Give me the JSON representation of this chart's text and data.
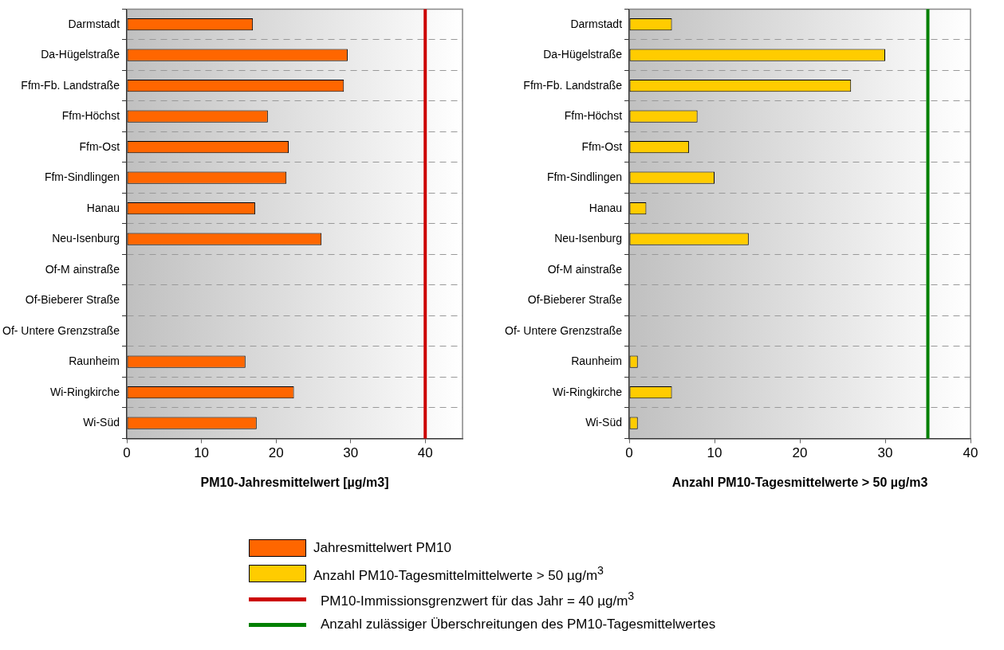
{
  "chart_data": [
    {
      "type": "bar",
      "orientation": "horizontal",
      "xlabel": "PM10-Jahresmittelwert [µg/m3]",
      "categories": [
        "Darmstadt",
        "Da-Hügelstraße",
        "Ffm-Fb. Landstraße",
        "Ffm-Höchst",
        "Ffm-Ost",
        "Ffm-Sindlingen",
        "Hanau",
        "Neu-Isenburg",
        "Of-M ainstraße",
        "Of-Bieberer Straße",
        "Of- Untere Grenzstraße",
        "Raunheim",
        "Wi-Ringkirche",
        "Wi-Süd"
      ],
      "series": [
        {
          "name": "Jahresmittelwert PM10",
          "color": "#ff6600",
          "values": [
            16.9,
            29.6,
            29.1,
            18.9,
            21.7,
            21.4,
            17.2,
            26.1,
            null,
            null,
            null,
            15.9,
            22.4,
            17.4
          ]
        }
      ],
      "xlim": [
        0,
        45
      ],
      "xticks": [
        0,
        10,
        20,
        30,
        40
      ],
      "grid": "y",
      "legend": "bottom",
      "ref_lines": [
        {
          "axis": "x",
          "value": 40,
          "label": "PM10-Immissionsgrenzwert für das Jahr = 40 µg/m$^{3}$",
          "color": "#cc0000"
        }
      ]
    },
    {
      "type": "bar",
      "orientation": "horizontal",
      "xlabel": "Anzahl PM10-Tagesmittelwerte > 50 µg/m3",
      "categories": [
        "Darmstadt",
        "Da-Hügelstraße",
        "Ffm-Fb. Landstraße",
        "Ffm-Höchst",
        "Ffm-Ost",
        "Ffm-Sindlingen",
        "Hanau",
        "Neu-Isenburg",
        "Of-M ainstraße",
        "Of-Bieberer Straße",
        "Of- Untere Grenzstraße",
        "Raunheim",
        "Wi-Ringkirche",
        "Wi-Süd"
      ],
      "series": [
        {
          "name": "Anzahl PM10-Tagesmittelmittelwerte > 50 µg/m$^{3}$",
          "color": "#ffcc00",
          "values": [
            5,
            30,
            26,
            8,
            7,
            10,
            2,
            14,
            null,
            null,
            null,
            1,
            5,
            1
          ]
        }
      ],
      "xlim": [
        0,
        40
      ],
      "xticks": [
        0,
        10,
        20,
        30,
        40
      ],
      "grid": "y",
      "legend": "bottom",
      "ref_lines": [
        {
          "axis": "x",
          "value": 35,
          "label": "Anzahl zulässiger Überschreitungen des PM10-Tagesmittelwertes",
          "color": "#008000"
        }
      ]
    }
  ]
}
